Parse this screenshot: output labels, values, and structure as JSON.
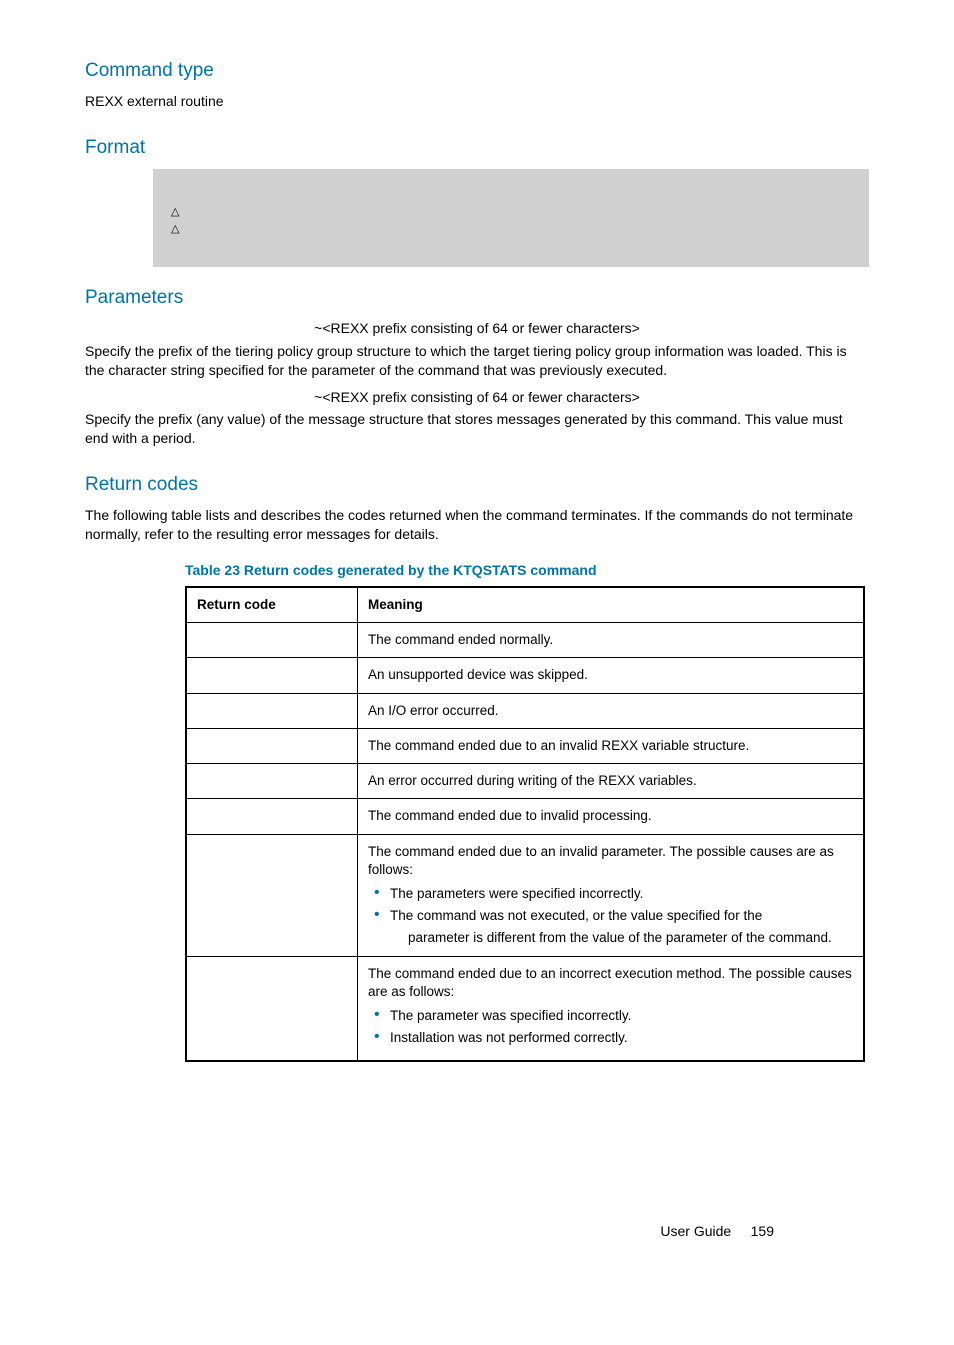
{
  "sections": {
    "command_type": {
      "heading": "Command type",
      "body": "REXX external routine"
    },
    "format": {
      "heading": "Format",
      "delta1": "△",
      "delta2": "△"
    },
    "parameters": {
      "heading": "Parameters",
      "p1_head": "~<REXX prefix consisting of 64 or fewer characters>",
      "p1_body": "Specify the prefix of the tiering policy group structure to which the target tiering policy group information was loaded. This is the character string specified for the            parameter of the command that was previously executed.",
      "p2_head": "~<REXX prefix consisting of 64 or fewer characters>",
      "p2_body": "Specify the prefix (any value) of the message structure that stores messages generated by this command. This value must end with a period."
    },
    "return_codes": {
      "heading": "Return codes",
      "intro": "The following table lists and describes the codes returned when the                  command terminates. If the commands do not terminate normally, refer to the resulting error messages for details.",
      "caption": "Table 23 Return codes generated by the KTQSTATS command",
      "col1": "Return code",
      "col2": "Meaning",
      "rows": [
        {
          "meaning": "The command ended normally."
        },
        {
          "meaning": "An unsupported device was skipped."
        },
        {
          "meaning": "An I/O error occurred."
        },
        {
          "meaning": "The command ended due to an invalid REXX variable structure."
        },
        {
          "meaning": "An error occurred during writing of the REXX variables."
        },
        {
          "meaning": "The command ended due to invalid processing."
        },
        {
          "meaning": "The command ended due to an invalid parameter. The possible causes are as follows:",
          "bullets": [
            "The parameters were specified incorrectly.",
            "The          command was not executed, or the value specified for the"
          ],
          "sub": "parameter is different from the value of the         parameter of the          command."
        },
        {
          "meaning": "The command ended due to an incorrect execution method. The possible causes are as follows:",
          "bullets": [
            "The        parameter was specified incorrectly.",
            "Installation was not performed correctly."
          ]
        }
      ]
    }
  },
  "footer": {
    "label": "User Guide",
    "page": "159"
  },
  "colors": {
    "accent": "#0073a8",
    "code_bg": "#d0d0d0"
  }
}
